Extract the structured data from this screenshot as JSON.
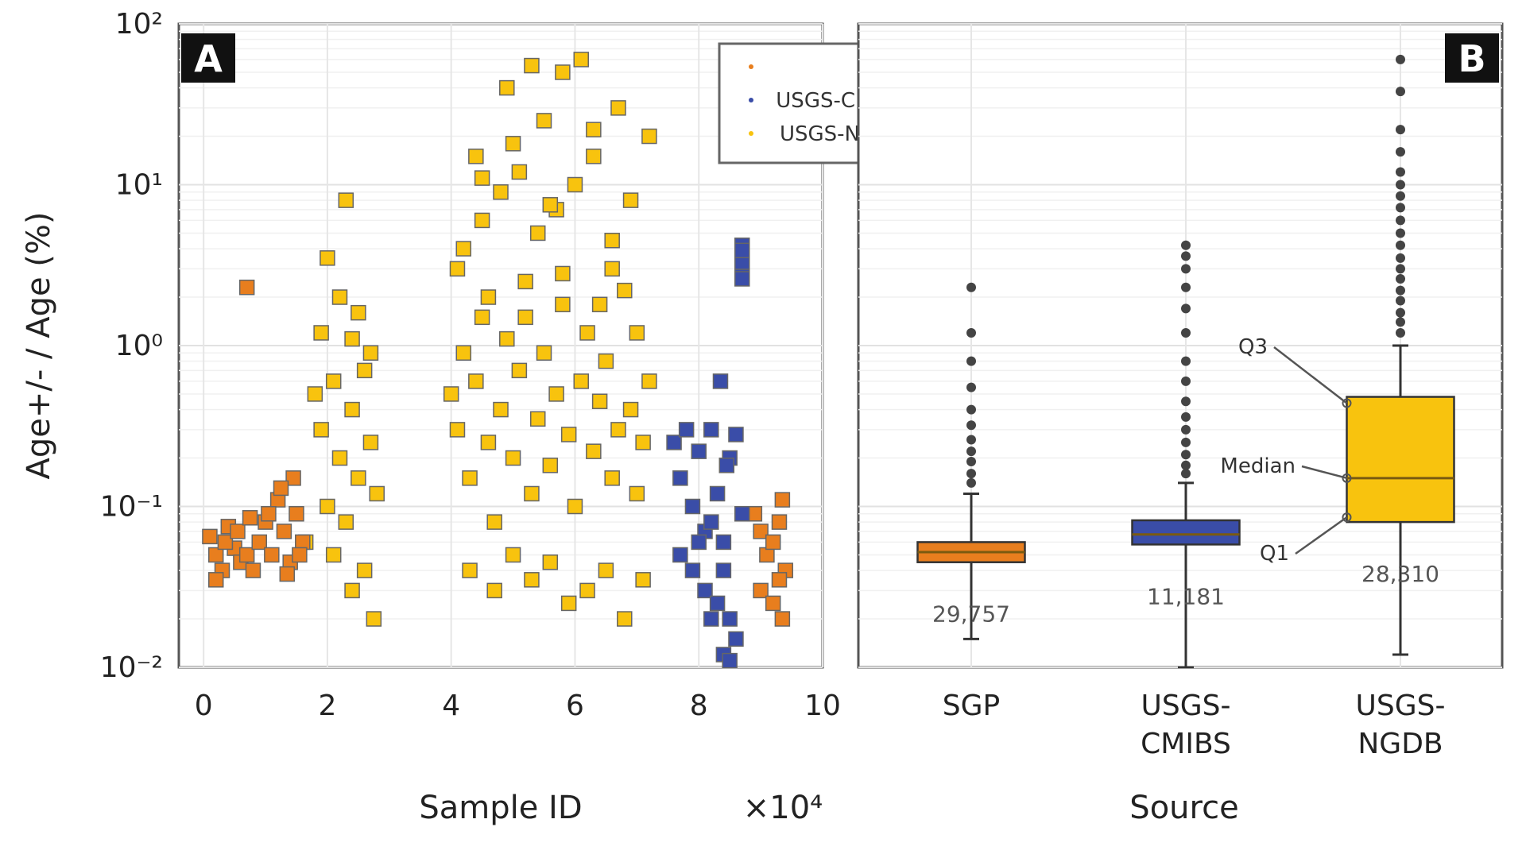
{
  "colors": {
    "SGP": "#E87E1E",
    "USGS-CMIBS": "#3A4DA8",
    "USGS-NGDB": "#F8C30E"
  },
  "chart_data": [
    {
      "panel_label": "A",
      "type": "scatter",
      "xlabel": "Sample ID",
      "x_multiplier_label": "×10⁴",
      "ylabel": "Age+/- / Age (%)",
      "y_scale": "log",
      "xlim": [
        -0.4,
        10
      ],
      "ylim": [
        0.01,
        100
      ],
      "x_ticks": [
        "0",
        "2",
        "4",
        "6",
        "8",
        "10"
      ],
      "y_ticks": [
        "10⁻²",
        "10⁻¹",
        "10⁰",
        "10¹",
        "10²"
      ],
      "grid": true,
      "legend_position": "top-right",
      "series": [
        {
          "name": "SGP",
          "x": [
            0.1,
            0.2,
            0.3,
            0.4,
            0.5,
            0.6,
            0.2,
            0.35,
            0.55,
            0.7,
            0.8,
            0.9,
            1.0,
            1.1,
            1.2,
            1.3,
            1.4,
            1.5,
            1.6,
            1.45,
            1.25,
            1.05,
            0.75,
            1.35,
            1.55,
            0.7,
            8.9,
            9.0,
            9.1,
            9.2,
            9.3,
            9.35,
            9.4,
            9.0,
            9.2,
            9.3,
            9.35
          ],
          "y": [
            0.065,
            0.05,
            0.04,
            0.075,
            0.055,
            0.045,
            0.035,
            0.06,
            0.07,
            0.05,
            0.04,
            0.06,
            0.08,
            0.05,
            0.11,
            0.07,
            0.045,
            0.09,
            0.06,
            0.15,
            0.13,
            0.09,
            0.085,
            0.038,
            0.05,
            2.3,
            0.09,
            0.07,
            0.05,
            0.06,
            0.08,
            0.11,
            0.04,
            0.03,
            0.025,
            0.035,
            0.02
          ]
        },
        {
          "name": "USGS-CMIBS",
          "x": [
            7.6,
            7.7,
            7.8,
            7.9,
            8.0,
            8.1,
            8.2,
            8.3,
            8.4,
            8.5,
            8.6,
            8.7,
            7.7,
            7.9,
            8.1,
            8.3,
            8.5,
            8.0,
            8.2,
            8.4,
            8.6,
            8.4,
            8.5,
            8.2,
            8.35,
            8.45,
            8.7,
            8.7,
            8.7,
            8.7,
            8.7,
            8.7
          ],
          "y": [
            0.25,
            0.15,
            0.3,
            0.1,
            0.22,
            0.07,
            0.3,
            0.12,
            0.06,
            0.2,
            0.28,
            0.09,
            0.05,
            0.04,
            0.03,
            0.025,
            0.02,
            0.06,
            0.08,
            0.04,
            0.015,
            0.012,
            0.011,
            0.02,
            0.6,
            0.18,
            3.0,
            3.6,
            4.2,
            2.6,
            3.3,
            3.9
          ]
        },
        {
          "name": "USGS-NGDB",
          "x": [
            1.8,
            1.9,
            2.0,
            2.1,
            2.2,
            2.3,
            2.4,
            2.5,
            2.6,
            2.7,
            2.8,
            1.9,
            2.2,
            2.5,
            2.7,
            2.1,
            2.4,
            2.6,
            2.0,
            2.3,
            1.65,
            2.75,
            2.4,
            4.0,
            4.1,
            4.2,
            4.3,
            4.4,
            4.5,
            4.6,
            4.7,
            4.8,
            4.9,
            5.0,
            5.1,
            5.2,
            5.3,
            5.4,
            5.5,
            5.6,
            5.7,
            5.8,
            5.9,
            6.0,
            6.1,
            6.2,
            6.3,
            6.4,
            6.5,
            6.6,
            6.7,
            6.8,
            6.9,
            7.0,
            7.1,
            7.2,
            4.2,
            4.5,
            4.8,
            5.1,
            5.4,
            5.7,
            6.0,
            6.3,
            6.6,
            6.9,
            7.2,
            4.3,
            4.7,
            5.0,
            5.3,
            5.6,
            5.9,
            6.2,
            6.5,
            6.8,
            7.1,
            4.1,
            4.6,
            5.2,
            5.8,
            6.4,
            7.0,
            4.4,
            5.5,
            6.7,
            4.9,
            6.1,
            5.3,
            5.8,
            5.0,
            6.3,
            4.5,
            5.6,
            6.6
          ],
          "y": [
            0.5,
            0.3,
            0.1,
            0.6,
            0.2,
            0.08,
            0.4,
            0.15,
            0.7,
            0.25,
            0.12,
            1.2,
            2.0,
            1.6,
            0.9,
            0.05,
            0.03,
            0.04,
            3.5,
            8.0,
            0.06,
            0.02,
            1.1,
            0.5,
            0.3,
            0.9,
            0.15,
            0.6,
            1.5,
            0.25,
            0.08,
            0.4,
            1.1,
            0.2,
            0.7,
            2.5,
            0.12,
            0.35,
            0.9,
            0.18,
            0.5,
            1.8,
            0.28,
            0.1,
            0.6,
            1.2,
            0.22,
            0.45,
            0.8,
            0.15,
            0.3,
            2.2,
            0.4,
            0.12,
            0.25,
            0.6,
            4.0,
            6.0,
            9.0,
            12.0,
            5.0,
            7.0,
            10.0,
            15.0,
            3.0,
            8.0,
            20.0,
            0.04,
            0.03,
            0.05,
            0.035,
            0.045,
            0.025,
            0.03,
            0.04,
            0.02,
            0.035,
            3.0,
            2.0,
            1.5,
            2.8,
            1.8,
            1.2,
            15.0,
            25.0,
            30.0,
            40.0,
            60.0,
            55.0,
            50.0,
            18.0,
            22.0,
            11.0,
            7.5,
            4.5
          ]
        }
      ]
    },
    {
      "panel_label": "B",
      "type": "box",
      "xlabel": "Source",
      "y_scale": "log",
      "ylim": [
        0.01,
        100
      ],
      "grid": true,
      "categories": [
        "SGP",
        "USGS-\nCMIBS",
        "USGS-\nNGDB"
      ],
      "category_lines": [
        [
          "SGP"
        ],
        [
          "USGS-",
          "CMIBS"
        ],
        [
          "USGS-",
          "NGDB"
        ]
      ],
      "series": [
        {
          "category": "SGP",
          "q1": 0.045,
          "median": 0.052,
          "q3": 0.06,
          "whisker_low": 0.015,
          "whisker_high": 0.12,
          "n_label": "29,757",
          "outliers": [
            0.14,
            0.16,
            0.19,
            0.22,
            0.26,
            0.32,
            0.4,
            0.55,
            0.8,
            1.2,
            2.3
          ]
        },
        {
          "category": "USGS-\nCMIBS",
          "q1": 0.058,
          "median": 0.067,
          "q3": 0.082,
          "whisker_low": 0.01,
          "whisker_high": 0.14,
          "n_label": "11,181",
          "outliers": [
            0.16,
            0.18,
            0.21,
            0.25,
            0.3,
            0.36,
            0.45,
            0.6,
            0.8,
            1.2,
            1.7,
            2.3,
            3.0,
            3.6,
            4.2
          ]
        },
        {
          "category": "USGS-\nNGDB",
          "q1": 0.08,
          "median": 0.15,
          "q3": 0.48,
          "whisker_low": 0.012,
          "whisker_high": 1.0,
          "n_label": "28,310",
          "outliers": [
            1.2,
            1.4,
            1.6,
            1.9,
            2.2,
            2.6,
            3.0,
            3.5,
            4.2,
            5.0,
            6.0,
            7.2,
            8.5,
            10.0,
            12.0,
            16.0,
            22.0,
            38.0,
            60.0
          ]
        }
      ],
      "annotations": [
        "Q3",
        "Median",
        "Q1"
      ]
    }
  ]
}
